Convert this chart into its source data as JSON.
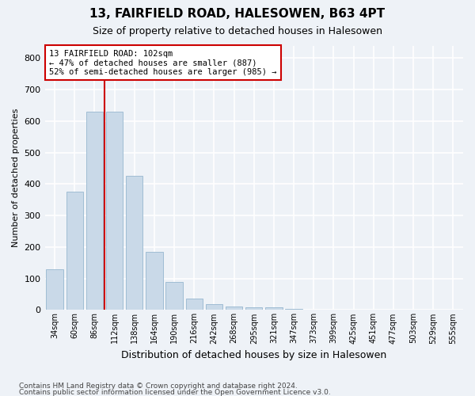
{
  "title": "13, FAIRFIELD ROAD, HALESOWEN, B63 4PT",
  "subtitle": "Size of property relative to detached houses in Halesowen",
  "xlabel": "Distribution of detached houses by size in Halesowen",
  "ylabel": "Number of detached properties",
  "bar_color": "#c9d9e8",
  "bar_edge_color": "#a0bdd4",
  "categories": [
    "34sqm",
    "60sqm",
    "86sqm",
    "112sqm",
    "138sqm",
    "164sqm",
    "190sqm",
    "216sqm",
    "242sqm",
    "268sqm",
    "295sqm",
    "321sqm",
    "347sqm",
    "373sqm",
    "399sqm",
    "425sqm",
    "451sqm",
    "477sqm",
    "503sqm",
    "529sqm",
    "555sqm"
  ],
  "values": [
    130,
    375,
    630,
    630,
    425,
    185,
    88,
    35,
    18,
    10,
    8,
    8,
    4,
    2,
    1,
    1,
    1,
    0,
    0,
    0,
    0
  ],
  "vline_x": 2.5,
  "vline_color": "#cc0000",
  "annotation_text": "13 FAIRFIELD ROAD: 102sqm\n← 47% of detached houses are smaller (887)\n52% of semi-detached houses are larger (985) →",
  "annotation_box_color": "#ffffff",
  "annotation_box_edge": "#cc0000",
  "ylim": [
    0,
    840
  ],
  "yticks": [
    0,
    100,
    200,
    300,
    400,
    500,
    600,
    700,
    800
  ],
  "footnote1": "Contains HM Land Registry data © Crown copyright and database right 2024.",
  "footnote2": "Contains public sector information licensed under the Open Government Licence v3.0.",
  "background_color": "#eef2f7",
  "grid_color": "#ffffff"
}
